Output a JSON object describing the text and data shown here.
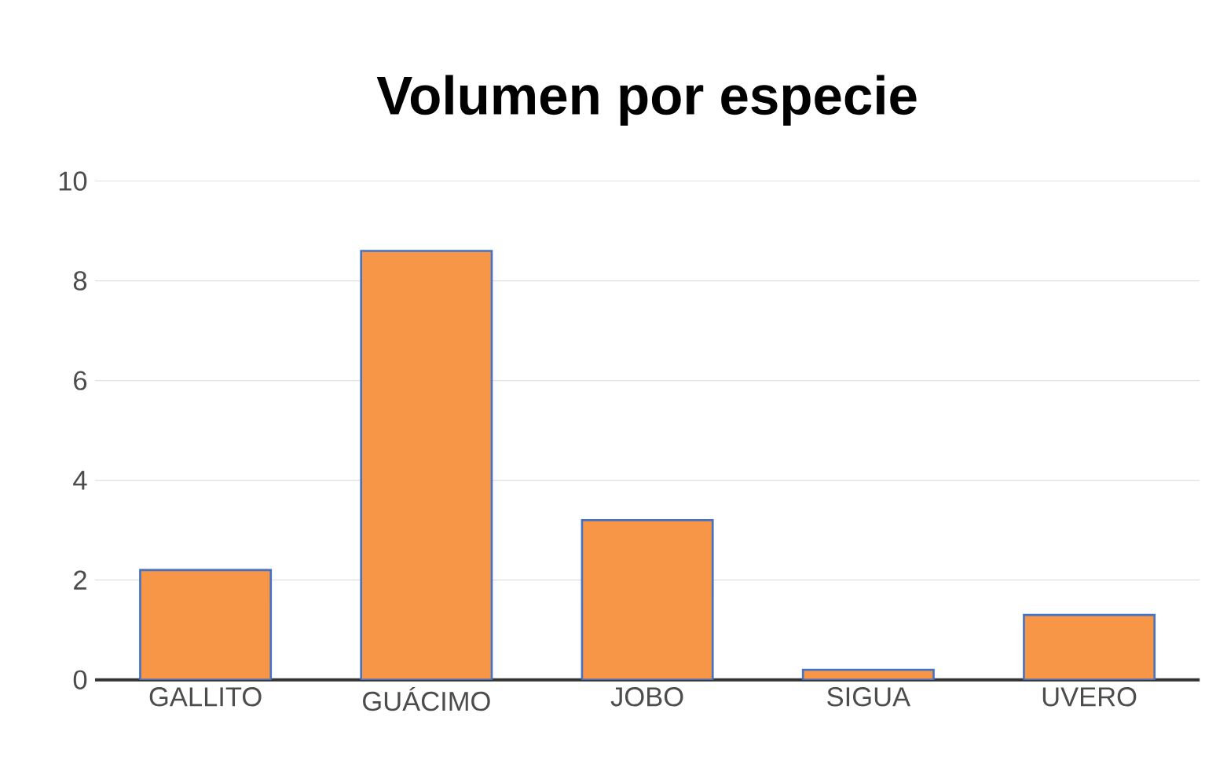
{
  "chart_data": {
    "type": "bar",
    "title": "Volumen por especie",
    "categories": [
      "GALLITO",
      "GUÁCIMO",
      "JOBO",
      "SIGUA",
      "UVERO"
    ],
    "values": [
      2.2,
      8.6,
      3.2,
      0.2,
      1.3
    ],
    "color": "#f79646",
    "ylim": [
      0,
      10
    ],
    "yticks": [
      0,
      2,
      4,
      6,
      8,
      10
    ],
    "grid": "y"
  }
}
